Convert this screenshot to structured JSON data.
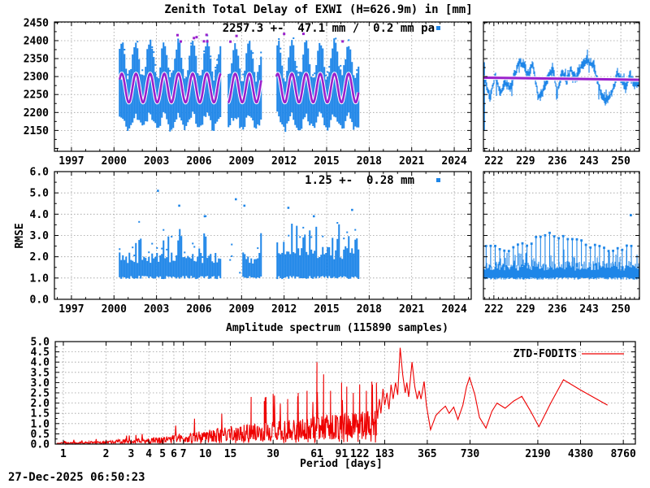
{
  "figure": {
    "timestamp": "27-Dec-2025 06:50:23"
  },
  "colors": {
    "data_blue": "#1e86e8",
    "fit_purple": "#9a20cc",
    "spectrum_red": "#ee0000",
    "grid_gray": "#9e9e9e",
    "frame_black": "#000000",
    "background": "#ffffff"
  },
  "chart_data": [
    {
      "id": "ztd_timeseries",
      "type": "scatter",
      "title": "Zenith Total Delay of EXWI (H=626.9m) in [mm]",
      "annotation": "2257.3 +-  47.1 mm /  0.2 mm pa",
      "grid": true,
      "x": {
        "range": [
          1995.8,
          2025.2
        ],
        "ticks": [
          1997,
          2000,
          2003,
          2006,
          2009,
          2012,
          2015,
          2018,
          2021,
          2024
        ],
        "labels": [
          "1997",
          "2000",
          "2003",
          "2006",
          "2009",
          "2012",
          "2015",
          "2018",
          "2021",
          "2024"
        ],
        "minor_step": 1
      },
      "y": {
        "range": [
          2092,
          2452
        ],
        "ticks": [
          2150,
          2200,
          2250,
          2300,
          2350,
          2400,
          2450
        ],
        "labels": [
          "2150",
          "2200",
          "2250",
          "2300",
          "2350",
          "2400",
          "2450"
        ],
        "minor_step": 25,
        "extra_tick": 2100
      },
      "series": [
        {
          "name": "ztd-observations",
          "style": "dense-scatter",
          "color": "#1e86e8",
          "span": [
            2000.4,
            2017.25
          ],
          "gaps": [
            [
              2007.55,
              2008.05
            ],
            [
              2010.4,
              2011.45
            ]
          ],
          "mean_mm": 2257.3,
          "sigma_mm": 47.1,
          "trend_mm_per_year": 0.2,
          "seasonal_top_mm": [
            2295,
            2395
          ],
          "seasonal_bottom_mm": [
            2152,
            2190
          ]
        },
        {
          "name": "seasonal-model-fit",
          "style": "line-with-white-halo",
          "color": "#9a20cc",
          "halo": "#ffffff",
          "center_mm": 2268,
          "amplitude_mm": 40,
          "period_years": 1
        },
        {
          "name": "flagged-outliers",
          "style": "points",
          "color": "#9a20cc",
          "count": 12,
          "y_mm_range": [
            2396,
            2420
          ]
        }
      ]
    },
    {
      "id": "ztd_day_of_year_zoom",
      "type": "scatter",
      "grid": true,
      "x": {
        "range": [
          219.7,
          254.1
        ],
        "ticks": [
          222,
          229,
          236,
          243,
          250
        ],
        "labels": [
          "222",
          "229",
          "236",
          "243",
          "250"
        ],
        "minor_step": 1
      },
      "y": {
        "range": [
          2092,
          2452
        ],
        "ticks": [
          2150,
          2200,
          2250,
          2300,
          2350,
          2400,
          2450
        ],
        "labels": [],
        "minor_step": 25,
        "extra_tick": 2100
      },
      "series": [
        {
          "name": "ztd-day-of-year-trace",
          "style": "dense-scatter",
          "color": "#1e86e8",
          "anchors": [
            [
              219.8,
              2300
            ],
            [
              220.5,
              2270
            ],
            [
              221.2,
              2240
            ],
            [
              222.3,
              2305
            ],
            [
              223.4,
              2250
            ],
            [
              224.5,
              2285
            ],
            [
              225.5,
              2270
            ],
            [
              226.5,
              2300
            ],
            [
              227.5,
              2340
            ],
            [
              228.5,
              2335
            ],
            [
              229.5,
              2300
            ],
            [
              230.5,
              2340
            ],
            [
              231.8,
              2240
            ],
            [
              232.8,
              2260
            ],
            [
              234,
              2300
            ],
            [
              235,
              2320
            ],
            [
              236,
              2260
            ],
            [
              237,
              2310
            ],
            [
              238,
              2290
            ],
            [
              239,
              2320
            ],
            [
              240,
              2295
            ],
            [
              241,
              2320
            ],
            [
              242.5,
              2350
            ],
            [
              243.2,
              2340
            ],
            [
              244,
              2330
            ],
            [
              245.5,
              2260
            ],
            [
              246.5,
              2230
            ],
            [
              247.5,
              2245
            ],
            [
              248.5,
              2270
            ],
            [
              249.2,
              2310
            ],
            [
              250.2,
              2290
            ],
            [
              251,
              2270
            ],
            [
              252,
              2300
            ],
            [
              253,
              2280
            ],
            [
              254.1,
              2285
            ]
          ]
        },
        {
          "name": "edge-spike",
          "style": "column",
          "x": 219.85,
          "y_span": [
            2150,
            2340
          ]
        },
        {
          "name": "mean-fit-line",
          "style": "line-with-white-halo",
          "color": "#9a20cc",
          "halo": "#ffffff",
          "points": [
            [
              219.7,
              2297
            ],
            [
              254.1,
              2291
            ]
          ]
        }
      ]
    },
    {
      "id": "rmse_timeseries",
      "type": "scatter",
      "ylabel": "RMSE",
      "annotation": "1.25 +-  0.28 mm",
      "grid": true,
      "x": {
        "range": [
          1995.8,
          2025.2
        ],
        "ticks": [
          1997,
          2000,
          2003,
          2006,
          2009,
          2012,
          2015,
          2018,
          2021,
          2024
        ],
        "labels": [
          "1997",
          "2000",
          "2003",
          "2006",
          "2009",
          "2012",
          "2015",
          "2018",
          "2021",
          "2024"
        ],
        "minor_step": 1
      },
      "y": {
        "range": [
          0,
          6
        ],
        "ticks": [
          0,
          1,
          2,
          3,
          4,
          5,
          6
        ],
        "labels": [
          "0.0",
          "1.0",
          "2.0",
          "3.0",
          "4.0",
          "5.0",
          "6.0"
        ],
        "minor_step": 0.5
      },
      "series": [
        {
          "name": "rmse-observations",
          "style": "dense-scatter",
          "color": "#1e86e8",
          "span": [
            2000.4,
            2017.25
          ],
          "gaps": [
            [
              2007.55,
              2008.05
            ],
            [
              2010.4,
              2011.45
            ]
          ],
          "sparse_span": [
            2008.05,
            2009.1
          ],
          "mean_mm": 1.25,
          "sigma_mm": 0.28,
          "band_mm": [
            0.95,
            2.3
          ],
          "outliers": [
            [
              2003.1,
              5.1
            ],
            [
              2004.6,
              4.4
            ],
            [
              2006.4,
              3.9
            ],
            [
              2008.6,
              4.7
            ],
            [
              2009.2,
              4.4
            ],
            [
              2012.3,
              4.3
            ],
            [
              2014.1,
              3.9
            ],
            [
              2016.8,
              4.2
            ]
          ]
        }
      ]
    },
    {
      "id": "rmse_day_of_year_zoom",
      "type": "scatter",
      "grid": true,
      "x": {
        "range": [
          219.7,
          254.1
        ],
        "ticks": [
          222,
          229,
          236,
          243,
          250
        ],
        "labels": [
          "222",
          "229",
          "236",
          "243",
          "250"
        ],
        "minor_step": 1
      },
      "y": {
        "range": [
          0,
          6
        ],
        "ticks": [
          0,
          1,
          2,
          3,
          4,
          5,
          6
        ],
        "labels": [],
        "minor_step": 0.5
      },
      "series": [
        {
          "name": "rmse-dense-band",
          "style": "dense-scatter",
          "color": "#1e86e8",
          "band_mm": [
            0.95,
            1.6
          ]
        },
        {
          "name": "daily-peak-impulses",
          "style": "impulses-with-points",
          "color": "#1e86e8",
          "period_days": 1,
          "envelope": [
            [
              220,
              2.55
            ],
            [
              223,
              2.45
            ],
            [
              226,
              2.35
            ],
            [
              229,
              2.6
            ],
            [
              232,
              2.9
            ],
            [
              235,
              3.05
            ],
            [
              238,
              2.9
            ],
            [
              241,
              2.7
            ],
            [
              244,
              2.5
            ],
            [
              247,
              2.25
            ],
            [
              250,
              2.4
            ],
            [
              252.5,
              2.5
            ]
          ]
        },
        {
          "name": "outlier-point",
          "style": "points",
          "color": "#1e86e8",
          "points": [
            [
              252.2,
              3.95
            ]
          ]
        }
      ]
    },
    {
      "id": "amplitude_spectrum",
      "type": "line",
      "title": "Amplitude spectrum (115890 samples)",
      "xlabel": "Period [days]",
      "legend": "ZTD-FODITS",
      "sample_count": 115890,
      "grid": true,
      "x": {
        "scale": "log",
        "range": [
          0.877,
          10650
        ],
        "ticks": [
          1,
          2,
          3,
          4,
          5,
          6,
          7,
          10,
          15,
          30,
          61,
          91,
          122,
          183,
          365,
          730,
          2190,
          4380,
          8760
        ],
        "labels": [
          "1",
          "2",
          "3",
          "4",
          "5",
          "6",
          "7",
          "10",
          "15",
          "30",
          "61",
          "91",
          "122",
          "183",
          "365",
          "730",
          "2190",
          "4380",
          "8760"
        ]
      },
      "y": {
        "range": [
          0,
          5
        ],
        "ticks": [
          0,
          0.5,
          1,
          1.5,
          2,
          2.5,
          3,
          3.5,
          4,
          4.5,
          5
        ],
        "labels": [
          "0.0",
          "0.5",
          "1.0",
          "1.5",
          "2.0",
          "2.5",
          "3.0",
          "3.5",
          "4.0",
          "4.5",
          "5.0"
        ],
        "minor_step": 0.25
      },
      "series": [
        {
          "name": "ZTD-FODITS",
          "color": "#ee0000",
          "noise_span": [
            0.9,
            165
          ],
          "noise_envelope": [
            [
              1,
              0.07
            ],
            [
              2,
              0.15
            ],
            [
              3,
              0.22
            ],
            [
              5,
              0.33
            ],
            [
              7,
              0.45
            ],
            [
              10,
              0.6
            ],
            [
              15,
              0.78
            ],
            [
              22,
              0.9
            ],
            [
              30,
              1.0
            ],
            [
              45,
              1.1
            ],
            [
              61,
              1.2
            ],
            [
              91,
              1.3
            ],
            [
              122,
              1.4
            ],
            [
              165,
              1.55
            ]
          ],
          "spikes": [
            [
              21,
              2.3
            ],
            [
              26,
              2.1
            ],
            [
              30,
              2.45
            ],
            [
              38,
              2.2
            ],
            [
              45,
              2.5
            ],
            [
              52,
              2.6
            ],
            [
              61,
              4.0
            ],
            [
              68,
              3.4
            ],
            [
              76,
              2.6
            ],
            [
              91,
              3.0
            ],
            [
              99,
              2.8
            ],
            [
              110,
              2.5
            ],
            [
              122,
              2.9
            ],
            [
              136,
              2.6
            ],
            [
              150,
              2.9
            ],
            [
              160,
              3.0
            ]
          ],
          "points": [
            [
              168,
              2.2
            ],
            [
              172,
              1.5
            ],
            [
              178,
              2.7
            ],
            [
              183,
              1.9
            ],
            [
              190,
              2.5
            ],
            [
              196,
              1.7
            ],
            [
              203,
              2.9
            ],
            [
              210,
              2.2
            ],
            [
              218,
              3.0
            ],
            [
              226,
              2.4
            ],
            [
              235,
              4.7
            ],
            [
              245,
              3.4
            ],
            [
              255,
              2.5
            ],
            [
              262,
              3.0
            ],
            [
              270,
              2.3
            ],
            [
              285,
              4.0
            ],
            [
              298,
              2.8
            ],
            [
              310,
              2.2
            ],
            [
              320,
              2.6
            ],
            [
              330,
              2.2
            ],
            [
              347,
              3.05
            ],
            [
              360,
              1.9
            ],
            [
              385,
              0.7
            ],
            [
              420,
              1.4
            ],
            [
              455,
              1.65
            ],
            [
              490,
              1.85
            ],
            [
              520,
              1.5
            ],
            [
              560,
              1.8
            ],
            [
              600,
              1.2
            ],
            [
              650,
              1.9
            ],
            [
              690,
              2.8
            ],
            [
              724,
              3.25
            ],
            [
              790,
              2.4
            ],
            [
              850,
              1.3
            ],
            [
              945,
              0.78
            ],
            [
              1040,
              1.6
            ],
            [
              1130,
              2.0
            ],
            [
              1290,
              1.75
            ],
            [
              1480,
              2.1
            ],
            [
              1690,
              2.33
            ],
            [
              1950,
              1.6
            ],
            [
              2230,
              0.85
            ],
            [
              2700,
              2.0
            ],
            [
              3320,
              3.14
            ],
            [
              4380,
              2.64
            ],
            [
              6780,
              1.9
            ]
          ]
        }
      ]
    }
  ]
}
